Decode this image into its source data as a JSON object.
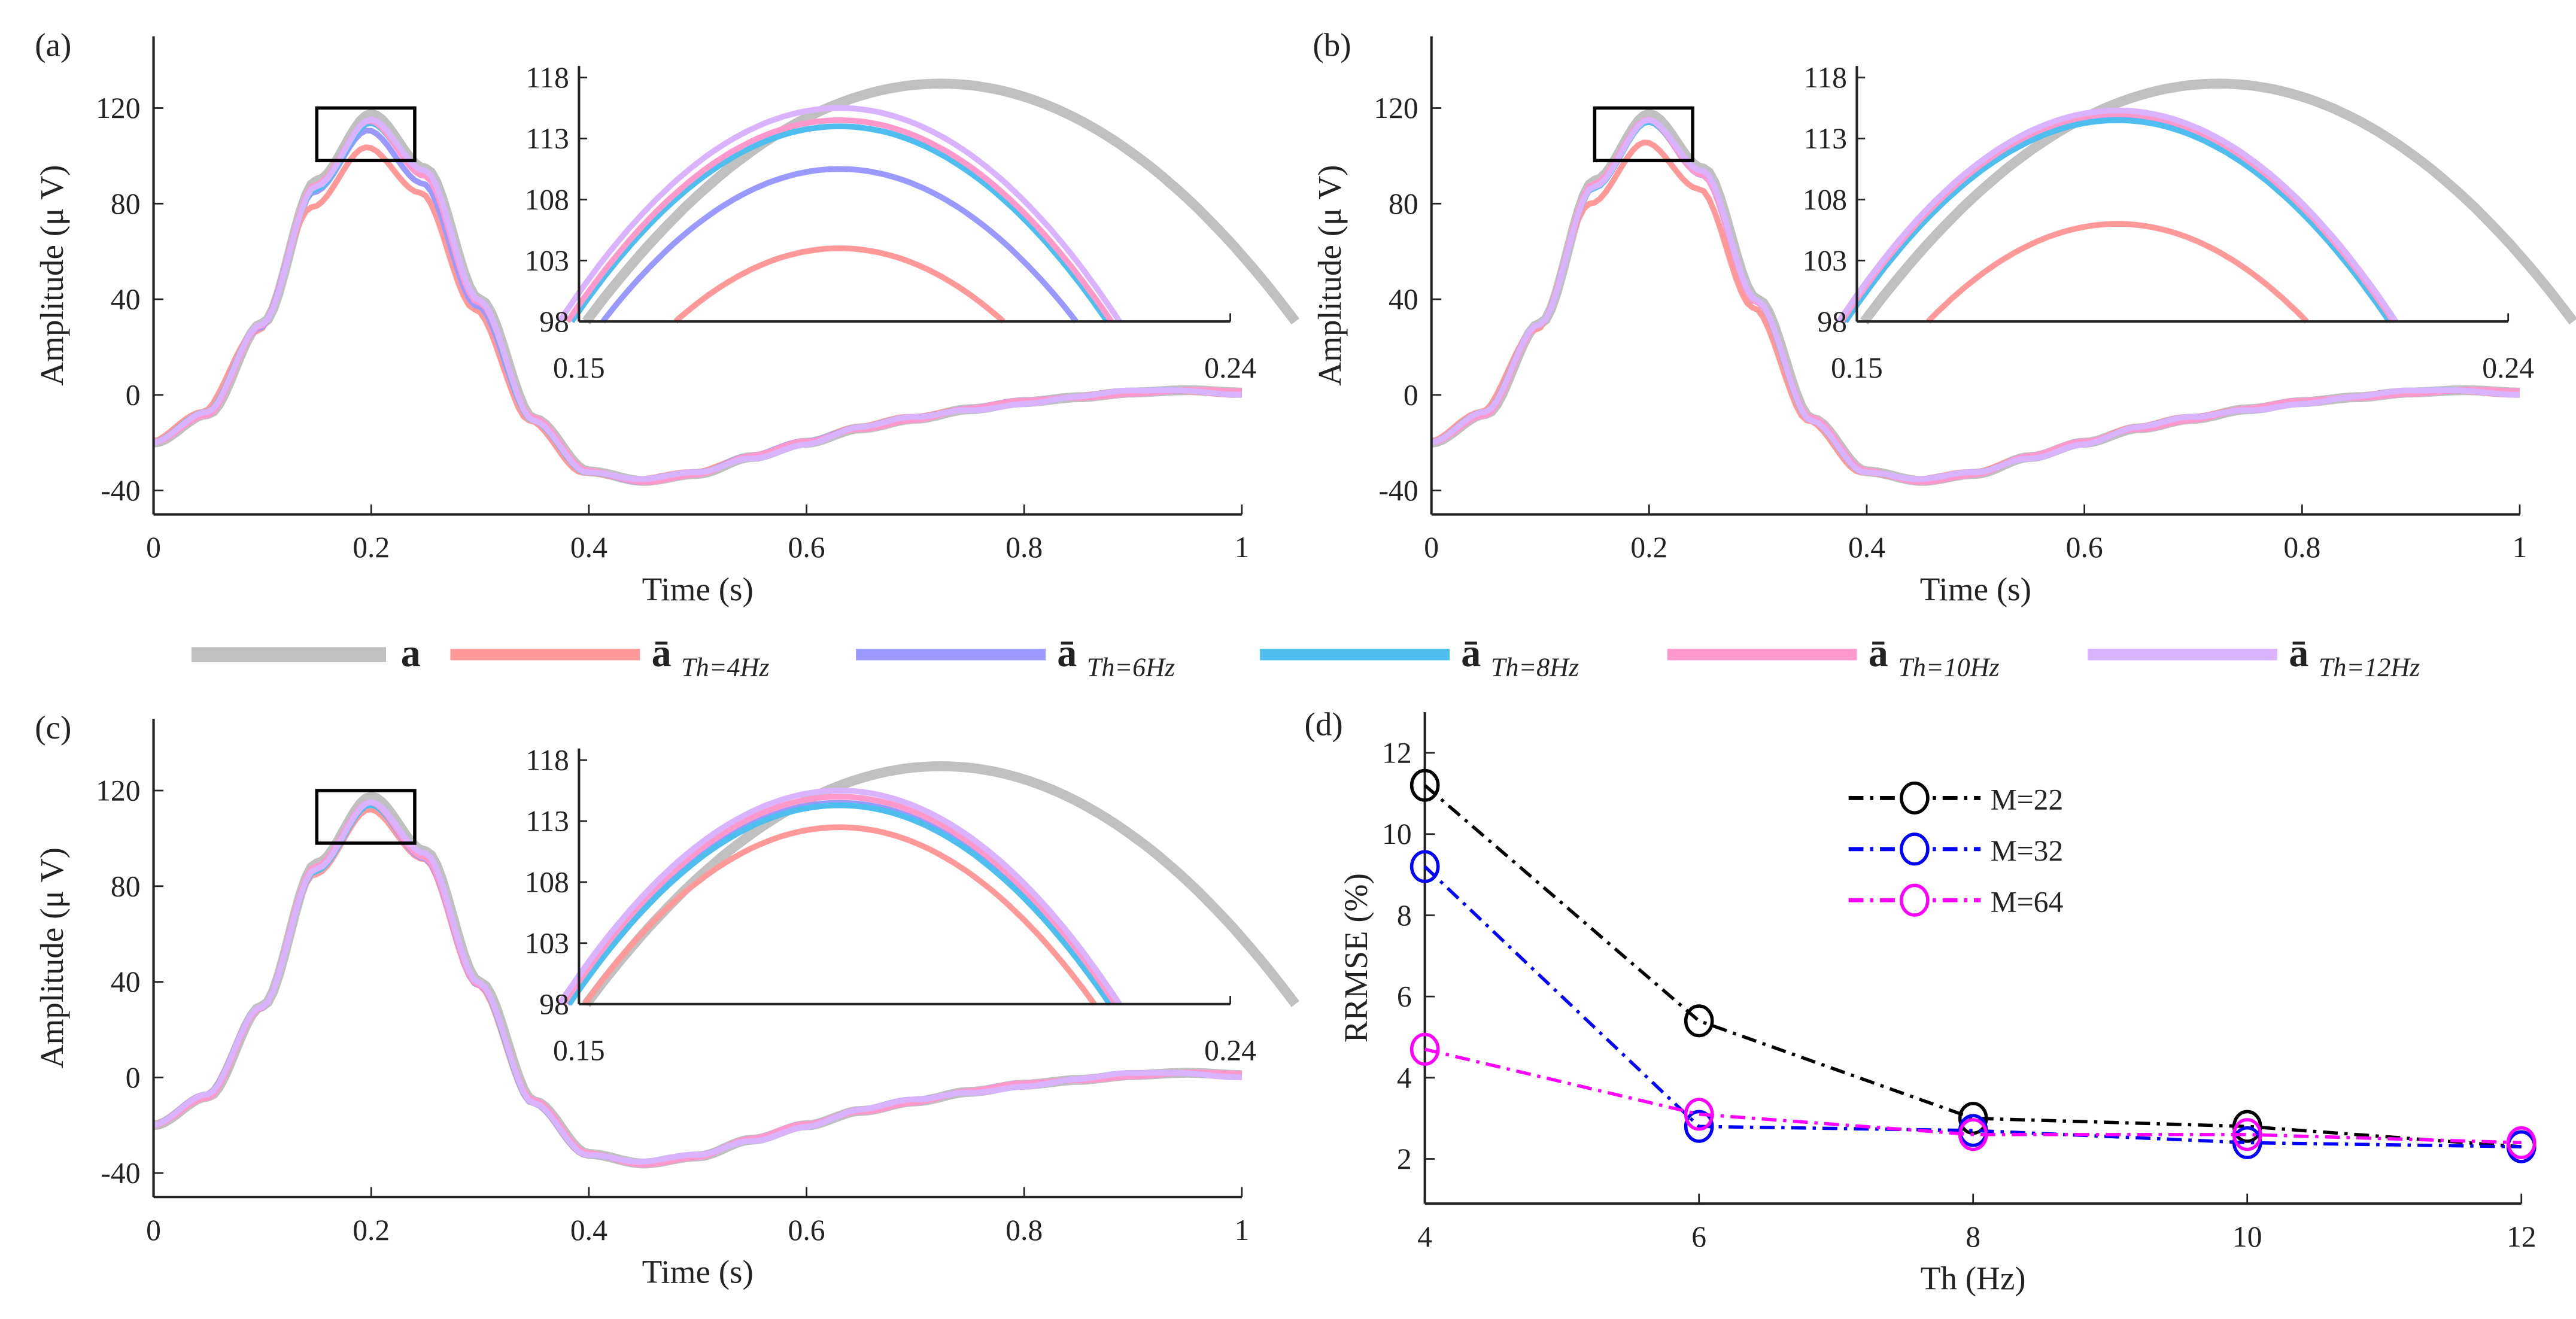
{
  "legend": {
    "items": [
      {
        "label": "a",
        "sub": "",
        "color": "#c0c0c0"
      },
      {
        "label": "ā",
        "sub": "Th=4Hz",
        "color": "#ff9999"
      },
      {
        "label": "ā",
        "sub": "Th=6Hz",
        "color": "#9999ff"
      },
      {
        "label": "ā",
        "sub": "Th=8Hz",
        "color": "#4dbeee"
      },
      {
        "label": "ā",
        "sub": "Th=10Hz",
        "color": "#ff99cc"
      },
      {
        "label": "ā",
        "sub": "Th=12Hz",
        "color": "#d9b3ff"
      }
    ]
  },
  "chart_data": [
    {
      "type": "line",
      "panel_label": "(a)",
      "xlabel": "Time (s)",
      "ylabel": "Amplitude (μ V)",
      "xlim": [
        0,
        1
      ],
      "ylim": [
        -50,
        150
      ],
      "xticks": [
        "0",
        "0.2",
        "0.4",
        "0.6",
        "0.8",
        "1"
      ],
      "yticks": [
        "-40",
        "0",
        "40",
        "80",
        "120"
      ],
      "reference_x": [
        0,
        0.05,
        0.1,
        0.15,
        0.2,
        0.25,
        0.3,
        0.35,
        0.4,
        0.45,
        0.5,
        0.55,
        0.6,
        0.65,
        0.7,
        0.75,
        0.8,
        0.85,
        0.9,
        0.95,
        1.0
      ],
      "reference_y": [
        -20,
        -8,
        30,
        90,
        118,
        95,
        40,
        -10,
        -32,
        -36,
        -33,
        -26,
        -20,
        -14,
        -10,
        -6,
        -3,
        -1,
        1,
        2,
        1
      ],
      "series_peaks": {
        "a": 117.5,
        "Th=4Hz": 104,
        "Th=6Hz": 110.5,
        "Th=8Hz": 114,
        "Th=10Hz": 114.5,
        "Th=12Hz": 115.5
      },
      "inset": {
        "xlim": [
          0.15,
          0.24
        ],
        "ylim": [
          98,
          118
        ],
        "xticks": [
          "0.15",
          "0.24"
        ],
        "yticks": [
          "98",
          "103",
          "108",
          "113",
          "118"
        ]
      }
    },
    {
      "type": "line",
      "panel_label": "(b)",
      "xlabel": "Time (s)",
      "ylabel": "Amplitude (μ V)",
      "xlim": [
        0,
        1
      ],
      "ylim": [
        -50,
        150
      ],
      "xticks": [
        "0",
        "0.2",
        "0.4",
        "0.6",
        "0.8",
        "1"
      ],
      "yticks": [
        "-40",
        "0",
        "40",
        "80",
        "120"
      ],
      "series_peaks": {
        "a": 117.5,
        "Th=4Hz": 106,
        "Th=6Hz": 114.8,
        "Th=8Hz": 114.5,
        "Th=10Hz": 115,
        "Th=12Hz": 115.3
      },
      "inset": {
        "xlim": [
          0.15,
          0.24
        ],
        "ylim": [
          98,
          118
        ],
        "xticks": [
          "0.15",
          "0.24"
        ],
        "yticks": [
          "98",
          "103",
          "108",
          "113",
          "118"
        ]
      }
    },
    {
      "type": "line",
      "panel_label": "(c)",
      "xlabel": "Time (s)",
      "ylabel": "Amplitude (μ V)",
      "xlim": [
        0,
        1
      ],
      "ylim": [
        -50,
        150
      ],
      "xticks": [
        "0",
        "0.2",
        "0.4",
        "0.6",
        "0.8",
        "1"
      ],
      "yticks": [
        "-40",
        "0",
        "40",
        "80",
        "120"
      ],
      "series_peaks": {
        "a": 117.5,
        "Th=4Hz": 112.5,
        "Th=6Hz": 114.5,
        "Th=8Hz": 114.3,
        "Th=10Hz": 115,
        "Th=12Hz": 115.5
      },
      "inset": {
        "xlim": [
          0.15,
          0.24
        ],
        "ylim": [
          98,
          118
        ],
        "xticks": [
          "0.15",
          "0.24"
        ],
        "yticks": [
          "98",
          "103",
          "108",
          "113",
          "118"
        ]
      }
    },
    {
      "type": "line",
      "panel_label": "(d)",
      "xlabel": "Th (Hz)",
      "ylabel": "RRMSE (%)",
      "xlim": [
        4,
        12
      ],
      "ylim": [
        0.9,
        13
      ],
      "xticks": [
        "4",
        "6",
        "8",
        "10",
        "12"
      ],
      "yticks": [
        "2",
        "4",
        "6",
        "8",
        "10",
        "12"
      ],
      "x": [
        4,
        6,
        8,
        10,
        12
      ],
      "legend_position": "top-center",
      "series": [
        {
          "name": "M=22",
          "color": "#000000",
          "values": [
            11.2,
            5.4,
            3.0,
            2.8,
            2.3
          ]
        },
        {
          "name": "M=32",
          "color": "#0000ff",
          "values": [
            9.2,
            2.8,
            2.7,
            2.4,
            2.3
          ]
        },
        {
          "name": "M=64",
          "color": "#ff00ff",
          "values": [
            4.7,
            3.1,
            2.6,
            2.6,
            2.4
          ]
        }
      ]
    }
  ]
}
